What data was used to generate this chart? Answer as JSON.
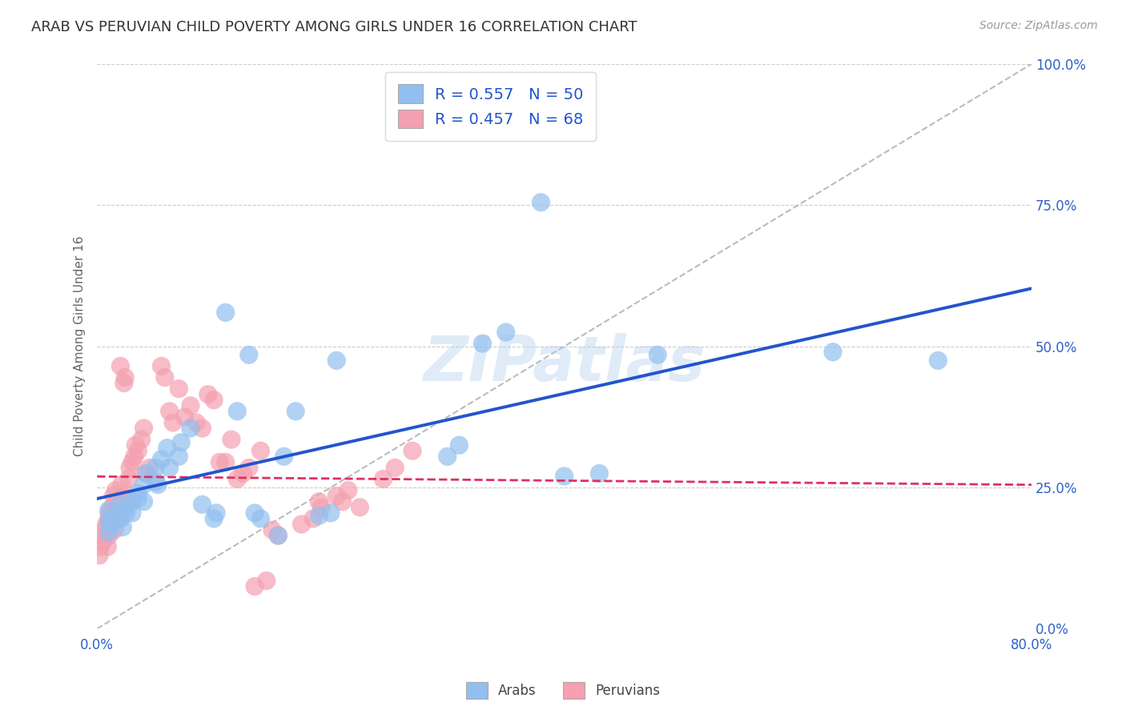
{
  "title": "ARAB VS PERUVIAN CHILD POVERTY AMONG GIRLS UNDER 16 CORRELATION CHART",
  "source": "Source: ZipAtlas.com",
  "ylabel_label": "Child Poverty Among Girls Under 16",
  "legend_arab_R": "0.557",
  "legend_arab_N": "50",
  "legend_peruvian_R": "0.457",
  "legend_peruvian_N": "68",
  "arab_color": "#92BFEF",
  "peruvian_color": "#F4A0B0",
  "arab_line_color": "#2255CC",
  "peruvian_line_color": "#E03060",
  "diagonal_color": "#BBBBBB",
  "watermark": "ZIPatlas",
  "arab_scatter": [
    [
      1.0,
      19.0
    ],
    [
      1.0,
      21.0
    ],
    [
      1.0,
      17.0
    ],
    [
      1.2,
      18.5
    ],
    [
      1.5,
      20.0
    ],
    [
      2.0,
      19.5
    ],
    [
      2.0,
      22.0
    ],
    [
      2.2,
      18.0
    ],
    [
      2.5,
      20.5
    ],
    [
      2.5,
      21.5
    ],
    [
      3.0,
      22.5
    ],
    [
      3.0,
      20.5
    ],
    [
      3.5,
      24.0
    ],
    [
      3.5,
      23.0
    ],
    [
      4.0,
      22.5
    ],
    [
      4.0,
      25.5
    ],
    [
      4.2,
      27.5
    ],
    [
      5.0,
      26.0
    ],
    [
      5.0,
      28.5
    ],
    [
      5.2,
      25.5
    ],
    [
      5.5,
      30.0
    ],
    [
      6.0,
      32.0
    ],
    [
      6.2,
      28.5
    ],
    [
      7.0,
      30.5
    ],
    [
      7.2,
      33.0
    ],
    [
      8.0,
      35.5
    ],
    [
      9.0,
      22.0
    ],
    [
      10.0,
      19.5
    ],
    [
      10.2,
      20.5
    ],
    [
      11.0,
      56.0
    ],
    [
      12.0,
      38.5
    ],
    [
      13.0,
      48.5
    ],
    [
      13.5,
      20.5
    ],
    [
      14.0,
      19.5
    ],
    [
      15.5,
      16.5
    ],
    [
      16.0,
      30.5
    ],
    [
      17.0,
      38.5
    ],
    [
      19.0,
      20.0
    ],
    [
      20.0,
      20.5
    ],
    [
      20.5,
      47.5
    ],
    [
      30.0,
      30.5
    ],
    [
      31.0,
      32.5
    ],
    [
      33.0,
      50.5
    ],
    [
      35.0,
      52.5
    ],
    [
      38.0,
      75.5
    ],
    [
      40.0,
      27.0
    ],
    [
      43.0,
      27.5
    ],
    [
      48.0,
      48.5
    ],
    [
      63.0,
      49.0
    ],
    [
      72.0,
      47.5
    ]
  ],
  "peruvian_scatter": [
    [
      0.2,
      13.0
    ],
    [
      0.3,
      14.5
    ],
    [
      0.5,
      15.5
    ],
    [
      0.5,
      16.5
    ],
    [
      0.6,
      17.5
    ],
    [
      0.8,
      18.5
    ],
    [
      0.9,
      14.5
    ],
    [
      1.0,
      16.5
    ],
    [
      1.0,
      20.5
    ],
    [
      1.0,
      19.5
    ],
    [
      1.2,
      20.5
    ],
    [
      1.3,
      21.5
    ],
    [
      1.3,
      19.5
    ],
    [
      1.4,
      23.5
    ],
    [
      1.5,
      17.5
    ],
    [
      1.6,
      24.5
    ],
    [
      1.7,
      22.5
    ],
    [
      1.8,
      21.5
    ],
    [
      1.9,
      19.5
    ],
    [
      2.0,
      46.5
    ],
    [
      2.1,
      25.5
    ],
    [
      2.2,
      23.5
    ],
    [
      2.3,
      43.5
    ],
    [
      2.4,
      44.5
    ],
    [
      2.5,
      22.5
    ],
    [
      2.7,
      26.5
    ],
    [
      2.8,
      28.5
    ],
    [
      3.0,
      29.5
    ],
    [
      3.2,
      30.5
    ],
    [
      3.3,
      32.5
    ],
    [
      3.5,
      31.5
    ],
    [
      3.8,
      33.5
    ],
    [
      4.0,
      35.5
    ],
    [
      4.2,
      27.5
    ],
    [
      4.5,
      28.5
    ],
    [
      5.5,
      46.5
    ],
    [
      5.8,
      44.5
    ],
    [
      6.2,
      38.5
    ],
    [
      6.5,
      36.5
    ],
    [
      7.0,
      42.5
    ],
    [
      7.5,
      37.5
    ],
    [
      8.0,
      39.5
    ],
    [
      8.5,
      36.5
    ],
    [
      9.0,
      35.5
    ],
    [
      9.5,
      41.5
    ],
    [
      10.0,
      40.5
    ],
    [
      10.5,
      29.5
    ],
    [
      11.0,
      29.5
    ],
    [
      11.5,
      33.5
    ],
    [
      12.0,
      26.5
    ],
    [
      12.5,
      27.5
    ],
    [
      13.0,
      28.5
    ],
    [
      13.5,
      7.5
    ],
    [
      14.0,
      31.5
    ],
    [
      14.5,
      8.5
    ],
    [
      15.0,
      17.5
    ],
    [
      15.5,
      16.5
    ],
    [
      17.5,
      18.5
    ],
    [
      18.5,
      19.5
    ],
    [
      19.0,
      22.5
    ],
    [
      19.2,
      21.5
    ],
    [
      20.5,
      23.5
    ],
    [
      21.0,
      22.5
    ],
    [
      21.5,
      24.5
    ],
    [
      22.5,
      21.5
    ],
    [
      24.5,
      26.5
    ],
    [
      25.5,
      28.5
    ],
    [
      27.0,
      31.5
    ]
  ],
  "xlim": [
    0.0,
    80.0
  ],
  "ylim": [
    0.0,
    100.0
  ],
  "xtick_positions": [
    0.0,
    20.0,
    40.0,
    60.0,
    80.0
  ],
  "ytick_positions": [
    0.0,
    25.0,
    50.0,
    75.0,
    100.0
  ],
  "ytick_labels": [
    "0.0%",
    "25.0%",
    "50.0%",
    "75.0%",
    "100.0%"
  ],
  "xtick_labels": [
    "0.0%",
    "",
    "",
    "",
    "80.0%"
  ],
  "grid_color": "#CCCCCC",
  "grid_linestyle": "--",
  "grid_linewidth": 0.8
}
